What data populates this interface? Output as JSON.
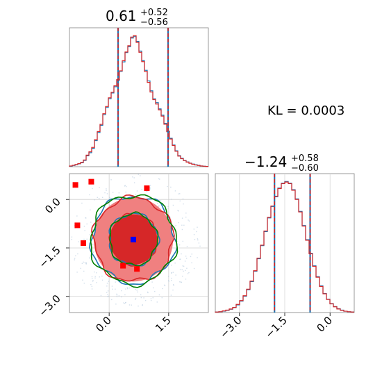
{
  "chart_data": [
    {
      "type": "histogram",
      "panel": "top-left",
      "parameter_index": 0,
      "title": {
        "value": "0.61",
        "plus": "+0.52",
        "minus": "−0.56"
      },
      "xlim": [
        -1.0,
        2.0
      ],
      "quantiles": [
        0.05,
        1.13
      ],
      "series": [
        {
          "color": "#1f77b4",
          "values": [
            0.2,
            0.5,
            0.8,
            1.2,
            1.6,
            2.6,
            4.5,
            5.8,
            7.6,
            10.8,
            14.2,
            17.2,
            21.6,
            24.6,
            28.2,
            30.6,
            33.2,
            35.8,
            39.6,
            43.5,
            47.4,
            49.8,
            53.4,
            54.0,
            52.0,
            48.0,
            44.0,
            40.0,
            35.6,
            31.5,
            28.2,
            26.6,
            24.0,
            21.4,
            18.0,
            14.8,
            11.8,
            9.0,
            6.6,
            4.6,
            3.5,
            2.6,
            2.0,
            1.5,
            1.1,
            0.8,
            0.6,
            0.3,
            0.2,
            0.1
          ]
        },
        {
          "color": "#d62728",
          "values": [
            0.3,
            0.6,
            0.9,
            1.3,
            1.8,
            2.8,
            4.8,
            6.2,
            8.0,
            11.2,
            14.6,
            17.6,
            22.0,
            25.0,
            28.6,
            30.9,
            33.6,
            36.2,
            39.8,
            44.0,
            47.6,
            50.2,
            53.8,
            54.4,
            51.6,
            47.5,
            43.6,
            39.5,
            35.0,
            31.0,
            27.8,
            26.0,
            23.6,
            21.0,
            17.6,
            14.5,
            11.5,
            8.8,
            6.4,
            4.4,
            3.3,
            2.5,
            1.9,
            1.4,
            1.0,
            0.7,
            0.5,
            0.3,
            0.2,
            0.1
          ]
        }
      ]
    },
    {
      "type": "histogram",
      "panel": "bottom-right",
      "parameter_index": 1,
      "title": {
        "value": "−1.24",
        "plus": "+0.58",
        "minus": "−0.60"
      },
      "xlim": [
        -3.8,
        0.8
      ],
      "xticks": [
        "−3.0",
        "−1.5",
        "0.0"
      ],
      "xtick_values": [
        -3.0,
        -1.5,
        0.0
      ],
      "quantiles": [
        -1.84,
        -0.66
      ],
      "series": [
        {
          "color": "#1f77b4",
          "values": [
            0.2,
            0.3,
            0.5,
            0.8,
            1.2,
            1.8,
            2.8,
            4.2,
            6.0,
            8.4,
            11.4,
            15.2,
            19.8,
            24.6,
            29.8,
            34.8,
            39.0,
            42.6,
            45.8,
            47.6,
            48.2,
            47.6,
            45.2,
            41.8,
            37.2,
            32.0,
            26.8,
            21.8,
            17.2,
            13.2,
            9.8,
            7.0,
            4.9,
            3.3,
            2.2,
            1.4,
            0.9,
            0.5,
            0.3,
            0.2
          ]
        },
        {
          "color": "#d62728",
          "values": [
            0.2,
            0.3,
            0.6,
            0.9,
            1.3,
            1.9,
            3.0,
            4.4,
            6.2,
            8.6,
            11.6,
            15.4,
            20.0,
            24.8,
            30.0,
            35.0,
            39.2,
            42.8,
            45.6,
            47.4,
            48.0,
            47.4,
            45.0,
            41.6,
            37.0,
            31.8,
            26.6,
            21.6,
            17.0,
            13.0,
            9.6,
            6.9,
            4.8,
            3.2,
            2.1,
            1.3,
            0.8,
            0.5,
            0.3,
            0.2
          ]
        }
      ]
    },
    {
      "type": "scatter",
      "panel": "bottom-left",
      "xlim": [
        -1.0,
        2.5
      ],
      "ylim": [
        -3.5,
        0.8
      ],
      "xticks": [
        "0.0",
        "1.5"
      ],
      "xtick_values": [
        0.0,
        1.5
      ],
      "yticks": [
        "0.0",
        "−1.5",
        "−3.0"
      ],
      "ytick_values": [
        0.0,
        -1.5,
        -3.0
      ],
      "center": {
        "x": 0.61,
        "y": -1.24,
        "color": "#0000ff"
      },
      "red_points": [
        {
          "x": -0.85,
          "y": 0.45
        },
        {
          "x": -0.45,
          "y": 0.55
        },
        {
          "x": 0.95,
          "y": 0.35
        },
        {
          "x": -0.8,
          "y": -0.8
        },
        {
          "x": -0.65,
          "y": -1.35
        },
        {
          "x": 0.35,
          "y": -2.05
        },
        {
          "x": 0.7,
          "y": -2.15
        }
      ],
      "contours": [
        {
          "color": "#1f77b4",
          "rx": 1.05,
          "ry": 1.35
        },
        {
          "color": "#1f77b4",
          "rx": 0.62,
          "ry": 0.8
        },
        {
          "color": "#d62728",
          "rx": 1.0,
          "ry": 1.3
        },
        {
          "color": "#d62728",
          "rx": 0.58,
          "ry": 0.78
        },
        {
          "color": "#008000",
          "rx": 1.08,
          "ry": 1.38
        },
        {
          "color": "#008000",
          "rx": 0.6,
          "ry": 0.8
        }
      ],
      "fill_colors": [
        "#f08080",
        "#d62728"
      ],
      "grid": true
    },
    {
      "type": "annotation",
      "panel": "top-right",
      "text": "KL = 0.0003"
    }
  ]
}
